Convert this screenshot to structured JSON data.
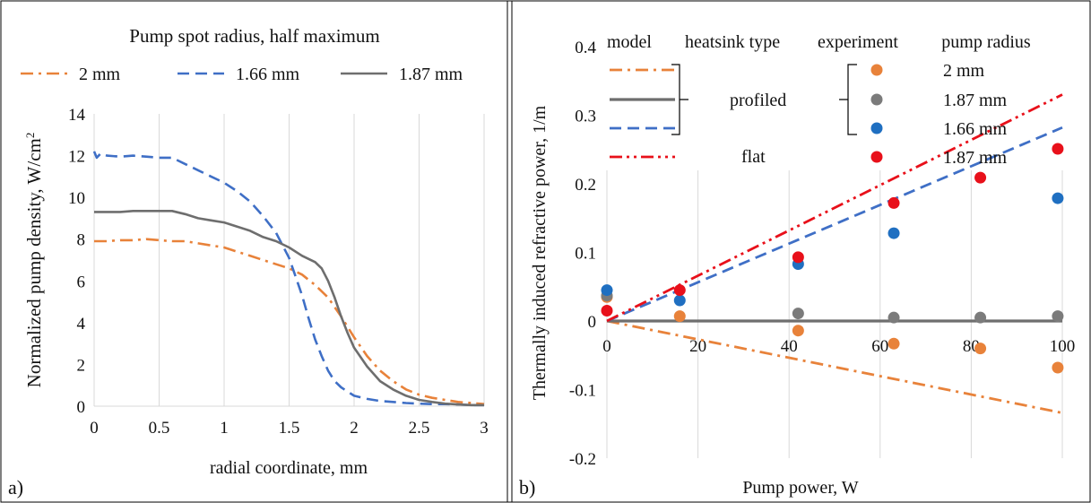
{
  "colors": {
    "orange": "#E8823A",
    "blue": "#3F6FC6",
    "gray": "#6E6E6E",
    "exp_blue": "#1F6FC1",
    "exp_gray": "#7B7B7B",
    "red": "#E8101A",
    "grid": "#D9D9D9"
  },
  "chart_data": [
    {
      "type": "line",
      "panel_label": "a)",
      "legend_title": "Pump spot radius, half maximum",
      "xlabel": "radial coordinate, mm",
      "ylabel": "Normalized pump density, W/cm",
      "ylabel_sup": "2",
      "xlim": [
        0,
        3
      ],
      "ylim": [
        0,
        14
      ],
      "xticks": [
        0,
        0.5,
        1,
        1.5,
        2,
        2.5,
        3
      ],
      "yticks": [
        0,
        2,
        4,
        6,
        8,
        10,
        12,
        14
      ],
      "grid": "vertical",
      "series": [
        {
          "name": "2 mm",
          "style": "dashdot",
          "color_key": "orange",
          "x": [
            0,
            0.1,
            0.2,
            0.3,
            0.4,
            0.5,
            0.6,
            0.7,
            0.8,
            0.9,
            1.0,
            1.1,
            1.2,
            1.3,
            1.4,
            1.5,
            1.6,
            1.7,
            1.8,
            1.9,
            2.0,
            2.1,
            2.2,
            2.3,
            2.4,
            2.5,
            2.6,
            2.7,
            2.8,
            2.9,
            3.0
          ],
          "y": [
            7.9,
            7.9,
            7.95,
            7.95,
            8.0,
            7.95,
            7.9,
            7.9,
            7.8,
            7.7,
            7.6,
            7.4,
            7.2,
            7.0,
            6.8,
            6.6,
            6.3,
            5.8,
            5.2,
            4.3,
            3.3,
            2.4,
            1.7,
            1.2,
            0.8,
            0.55,
            0.4,
            0.3,
            0.2,
            0.15,
            0.1
          ]
        },
        {
          "name": "1.66 mm",
          "style": "dash",
          "color_key": "blue",
          "x": [
            0,
            0.02,
            0.05,
            0.1,
            0.2,
            0.3,
            0.4,
            0.5,
            0.6,
            0.7,
            0.8,
            0.9,
            1.0,
            1.1,
            1.2,
            1.3,
            1.4,
            1.5,
            1.55,
            1.6,
            1.65,
            1.7,
            1.75,
            1.8,
            1.85,
            1.9,
            2.0,
            2.1,
            2.2,
            2.3,
            2.4,
            2.5,
            2.6,
            2.7,
            2.8,
            2.9,
            3.0
          ],
          "y": [
            12.2,
            11.9,
            12.1,
            12.0,
            11.95,
            12.0,
            11.95,
            11.9,
            11.9,
            11.6,
            11.3,
            11.0,
            10.7,
            10.3,
            9.8,
            9.1,
            8.3,
            7.1,
            6.2,
            5.3,
            4.2,
            3.2,
            2.4,
            1.7,
            1.2,
            0.9,
            0.5,
            0.35,
            0.25,
            0.2,
            0.15,
            0.12,
            0.1,
            0.1,
            0.08,
            0.05,
            0.05
          ]
        },
        {
          "name": "1.87 mm",
          "style": "solid",
          "color_key": "gray",
          "x": [
            0,
            0.1,
            0.2,
            0.3,
            0.4,
            0.5,
            0.6,
            0.7,
            0.8,
            0.9,
            1.0,
            1.1,
            1.2,
            1.3,
            1.4,
            1.5,
            1.6,
            1.7,
            1.75,
            1.8,
            1.85,
            1.9,
            1.95,
            2.0,
            2.1,
            2.2,
            2.3,
            2.4,
            2.5,
            2.6,
            2.7,
            2.8,
            2.9,
            3.0
          ],
          "y": [
            9.3,
            9.3,
            9.3,
            9.35,
            9.35,
            9.35,
            9.35,
            9.2,
            9.0,
            8.9,
            8.8,
            8.6,
            8.4,
            8.1,
            7.9,
            7.6,
            7.2,
            6.9,
            6.6,
            6.0,
            5.2,
            4.3,
            3.5,
            2.8,
            1.9,
            1.2,
            0.8,
            0.5,
            0.3,
            0.2,
            0.12,
            0.08,
            0.05,
            0.05
          ]
        }
      ]
    },
    {
      "type": "scatter",
      "panel_label": "b)",
      "xlabel": "Pump power, W",
      "ylabel": "Thermally induced refractive power, 1/m",
      "xlim": [
        0,
        100
      ],
      "ylim": [
        -0.2,
        0.4
      ],
      "xticks": [
        0,
        20,
        40,
        60,
        80,
        100
      ],
      "yticks": [
        -0.2,
        -0.1,
        0,
        0.1,
        0.2,
        0.3,
        0.4
      ],
      "ytick_labels": [
        "-0.2",
        "-0.1",
        "0",
        "0.1",
        "0.2",
        "0.3",
        "0.4"
      ],
      "grid": "vertical",
      "legend": {
        "headers": [
          "model",
          "heatsink type",
          "experiment",
          "pump radius"
        ],
        "group_labels": [
          "profiled",
          "flat"
        ],
        "entries": [
          "2 mm",
          "1.87 mm",
          "1.66 mm",
          "1.87 mm"
        ]
      },
      "model_series": [
        {
          "radius": "2 mm",
          "heatsink": "profiled",
          "style": "dashdot",
          "color_key": "orange",
          "x": [
            0,
            100
          ],
          "y": [
            0,
            -0.134
          ]
        },
        {
          "radius": "1.87 mm",
          "heatsink": "profiled",
          "style": "solid",
          "color_key": "gray",
          "x": [
            0,
            100
          ],
          "y": [
            0,
            0
          ]
        },
        {
          "radius": "1.66 mm",
          "heatsink": "profiled",
          "style": "dash",
          "color_key": "blue",
          "x": [
            0,
            100
          ],
          "y": [
            0,
            0.282
          ]
        },
        {
          "radius": "1.87 mm",
          "heatsink": "flat",
          "style": "dashdotdot",
          "color_key": "red",
          "x": [
            0,
            100
          ],
          "y": [
            0,
            0.33
          ]
        }
      ],
      "experiment_series": [
        {
          "radius": "2 mm",
          "heatsink": "profiled",
          "color_key": "orange",
          "x": [
            0,
            16,
            42,
            63,
            82,
            99
          ],
          "y": [
            0.035,
            0.007,
            -0.014,
            -0.033,
            -0.04,
            -0.068
          ]
        },
        {
          "radius": "1.87 mm",
          "heatsink": "profiled",
          "color_key": "exp_gray",
          "x": [
            0,
            42,
            63,
            82,
            99
          ],
          "y": [
            0.037,
            0.011,
            0.005,
            0.005,
            0.007
          ]
        },
        {
          "radius": "1.66 mm",
          "heatsink": "profiled",
          "color_key": "exp_blue",
          "x": [
            0,
            16,
            42,
            63,
            99
          ],
          "y": [
            0.045,
            0.03,
            0.083,
            0.128,
            0.179
          ]
        },
        {
          "radius": "1.87 mm",
          "heatsink": "flat",
          "color_key": "red",
          "x": [
            0,
            16,
            42,
            63,
            82,
            99
          ],
          "y": [
            0.015,
            0.045,
            0.093,
            0.172,
            0.209,
            0.251
          ]
        }
      ]
    }
  ]
}
